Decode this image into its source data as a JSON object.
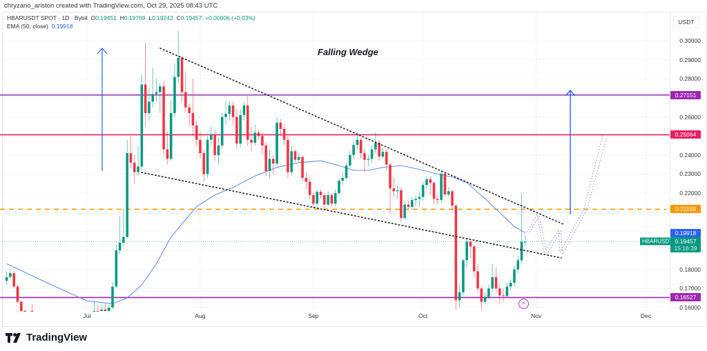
{
  "header": {
    "creator_line": "chryzano_ariston created with TradingView.com, Oct 29, 2025 08:43 UTC",
    "symbol_line": "HBARUSDT SPOT · 1D · Bybit",
    "ohlc": {
      "o_label": "O",
      "o": "0.19451",
      "h_label": "H",
      "h": "0.19769",
      "l_label": "L",
      "l": "0.19243",
      "c_label": "C",
      "c": "0.19457",
      "change": "+0.00006 (+0.03%)"
    },
    "ema_label": "EMA (50, close)",
    "ema_value": "0.19918"
  },
  "annotation_title": "Falling Wedge",
  "price_axis": {
    "currency": "USDT",
    "ticks": [
      "0.30000",
      "0.29000",
      "0.28000",
      "0.26000",
      "0.24000",
      "0.23000",
      "0.22000",
      "0.18000",
      "0.17000",
      "0.16000"
    ],
    "tick_values": [
      0.3,
      0.29,
      0.28,
      0.26,
      0.24,
      0.23,
      0.22,
      0.18,
      0.17,
      0.16
    ]
  },
  "time_axis": {
    "labels": [
      "Jul",
      "Aug",
      "Sep",
      "Oct",
      "Nov",
      "Dec"
    ],
    "dates": [
      "2025-07-01",
      "2025-08-01",
      "2025-09-01",
      "2025-10-01",
      "2025-11-01",
      "2025-12-01"
    ]
  },
  "levels": [
    {
      "value": "0.27151",
      "color": "#9c27b0",
      "style": "solid"
    },
    {
      "value": "0.25064",
      "color": "#e91e63",
      "style": "solid"
    },
    {
      "value": "0.21158",
      "color": "#ff9800",
      "style": "dashed"
    },
    {
      "value": "0.16527",
      "color": "#9c27b0",
      "style": "solid"
    }
  ],
  "ema_tag": {
    "value": "0.19918",
    "color": "#2962ff"
  },
  "last_price_tag": {
    "symbol": "HBARUSDT",
    "value": "0.19457",
    "countdown": "15:16:39",
    "color": "#089981"
  },
  "colors": {
    "up": "#089981",
    "down": "#f23645",
    "ema": "#6b8ff0"
  },
  "brand": "TradingView",
  "chart_data": {
    "type": "candlestick",
    "symbol": "HBARUSDT",
    "interval": "1D",
    "ylim": [
      0.158,
      0.307
    ],
    "xlim": [
      "2025-06-08",
      "2025-12-15"
    ],
    "grid": true,
    "candles_format": [
      "date",
      "open",
      "high",
      "low",
      "close"
    ],
    "candles": [
      [
        "2025-06-09",
        0.174,
        0.179,
        0.172,
        0.176
      ],
      [
        "2025-06-10",
        0.176,
        0.18,
        0.175,
        0.178
      ],
      [
        "2025-06-11",
        0.178,
        0.179,
        0.17,
        0.171
      ],
      [
        "2025-06-12",
        0.171,
        0.172,
        0.162,
        0.163
      ],
      [
        "2025-06-13",
        0.163,
        0.164,
        0.157,
        0.158
      ],
      [
        "2025-06-14",
        0.158,
        0.159,
        0.154,
        0.156
      ],
      [
        "2025-06-15",
        0.156,
        0.158,
        0.153,
        0.154
      ],
      [
        "2025-06-16",
        0.154,
        0.162,
        0.152,
        0.153
      ],
      [
        "2025-06-17",
        0.153,
        0.155,
        0.15,
        0.151
      ],
      [
        "2025-06-18",
        0.151,
        0.154,
        0.149,
        0.152
      ],
      [
        "2025-06-19",
        0.152,
        0.154,
        0.15,
        0.151
      ],
      [
        "2025-06-20",
        0.151,
        0.153,
        0.148,
        0.15
      ],
      [
        "2025-06-21",
        0.15,
        0.152,
        0.147,
        0.149
      ],
      [
        "2025-06-22",
        0.149,
        0.151,
        0.145,
        0.147
      ],
      [
        "2025-06-23",
        0.147,
        0.153,
        0.146,
        0.152
      ],
      [
        "2025-06-24",
        0.152,
        0.155,
        0.15,
        0.153
      ],
      [
        "2025-06-25",
        0.153,
        0.155,
        0.15,
        0.151
      ],
      [
        "2025-06-26",
        0.151,
        0.153,
        0.149,
        0.15
      ],
      [
        "2025-06-27",
        0.15,
        0.153,
        0.149,
        0.152
      ],
      [
        "2025-06-28",
        0.152,
        0.154,
        0.151,
        0.153
      ],
      [
        "2025-06-29",
        0.153,
        0.155,
        0.151,
        0.154
      ],
      [
        "2025-06-30",
        0.154,
        0.156,
        0.151,
        0.152
      ],
      [
        "2025-07-01",
        0.152,
        0.156,
        0.15,
        0.155
      ],
      [
        "2025-07-02",
        0.155,
        0.158,
        0.153,
        0.157
      ],
      [
        "2025-07-03",
        0.157,
        0.163,
        0.156,
        0.158
      ],
      [
        "2025-07-04",
        0.158,
        0.161,
        0.156,
        0.157
      ],
      [
        "2025-07-05",
        0.157,
        0.161,
        0.156,
        0.159
      ],
      [
        "2025-07-06",
        0.159,
        0.162,
        0.157,
        0.158
      ],
      [
        "2025-07-07",
        0.158,
        0.161,
        0.157,
        0.16
      ],
      [
        "2025-07-08",
        0.16,
        0.173,
        0.159,
        0.171
      ],
      [
        "2025-07-09",
        0.171,
        0.193,
        0.17,
        0.19
      ],
      [
        "2025-07-10",
        0.19,
        0.208,
        0.188,
        0.194
      ],
      [
        "2025-07-11",
        0.194,
        0.212,
        0.192,
        0.197
      ],
      [
        "2025-07-12",
        0.197,
        0.248,
        0.196,
        0.241
      ],
      [
        "2025-07-13",
        0.241,
        0.25,
        0.233,
        0.236
      ],
      [
        "2025-07-14",
        0.236,
        0.24,
        0.225,
        0.231
      ],
      [
        "2025-07-15",
        0.231,
        0.245,
        0.229,
        0.234
      ],
      [
        "2025-07-16",
        0.234,
        0.282,
        0.232,
        0.277
      ],
      [
        "2025-07-17",
        0.277,
        0.299,
        0.255,
        0.262
      ],
      [
        "2025-07-18",
        0.262,
        0.275,
        0.258,
        0.268
      ],
      [
        "2025-07-19",
        0.268,
        0.286,
        0.265,
        0.272
      ],
      [
        "2025-07-20",
        0.272,
        0.28,
        0.268,
        0.273
      ],
      [
        "2025-07-21",
        0.273,
        0.278,
        0.262,
        0.276
      ],
      [
        "2025-07-22",
        0.276,
        0.279,
        0.24,
        0.243
      ],
      [
        "2025-07-23",
        0.243,
        0.252,
        0.235,
        0.238
      ],
      [
        "2025-07-24",
        0.238,
        0.269,
        0.237,
        0.262
      ],
      [
        "2025-07-25",
        0.262,
        0.288,
        0.26,
        0.281
      ],
      [
        "2025-07-26",
        0.281,
        0.305,
        0.278,
        0.291
      ],
      [
        "2025-07-27",
        0.291,
        0.292,
        0.268,
        0.273
      ],
      [
        "2025-07-28",
        0.273,
        0.284,
        0.262,
        0.265
      ],
      [
        "2025-07-29",
        0.265,
        0.267,
        0.255,
        0.262
      ],
      [
        "2025-07-30",
        0.262,
        0.28,
        0.25,
        0.2555
      ],
      [
        "2025-07-31",
        0.2555,
        0.258,
        0.245,
        0.248
      ],
      [
        "2025-08-01",
        0.248,
        0.252,
        0.238,
        0.241
      ],
      [
        "2025-08-02",
        0.241,
        0.243,
        0.226,
        0.23
      ],
      [
        "2025-08-03",
        0.23,
        0.25,
        0.228,
        0.248
      ],
      [
        "2025-08-04",
        0.248,
        0.255,
        0.245,
        0.251
      ],
      [
        "2025-08-05",
        0.251,
        0.253,
        0.237,
        0.24
      ],
      [
        "2025-08-06",
        0.24,
        0.249,
        0.235,
        0.245
      ],
      [
        "2025-08-07",
        0.245,
        0.262,
        0.243,
        0.26
      ],
      [
        "2025-08-08",
        0.26,
        0.268,
        0.256,
        0.2616
      ],
      [
        "2025-08-09",
        0.2616,
        0.268,
        0.258,
        0.266
      ],
      [
        "2025-08-10",
        0.266,
        0.268,
        0.256,
        0.26
      ],
      [
        "2025-08-11",
        0.26,
        0.264,
        0.243,
        0.246
      ],
      [
        "2025-08-12",
        0.246,
        0.264,
        0.244,
        0.261
      ],
      [
        "2025-08-13",
        0.261,
        0.268,
        0.258,
        0.266
      ],
      [
        "2025-08-14",
        0.266,
        0.271,
        0.245,
        0.248
      ],
      [
        "2025-08-15",
        0.248,
        0.255,
        0.242,
        0.2465
      ],
      [
        "2025-08-16",
        0.2465,
        0.256,
        0.245,
        0.2518
      ],
      [
        "2025-08-17",
        0.2518,
        0.253,
        0.248,
        0.25
      ],
      [
        "2025-08-18",
        0.25,
        0.252,
        0.24,
        0.245
      ],
      [
        "2025-08-19",
        0.245,
        0.247,
        0.229,
        0.2316
      ],
      [
        "2025-08-20",
        0.2316,
        0.243,
        0.228,
        0.238
      ],
      [
        "2025-08-21",
        0.238,
        0.24,
        0.23,
        0.2355
      ],
      [
        "2025-08-22",
        0.2355,
        0.26,
        0.234,
        0.257
      ],
      [
        "2025-08-23",
        0.257,
        0.259,
        0.25,
        0.2537
      ],
      [
        "2025-08-24",
        0.2537,
        0.256,
        0.245,
        0.248
      ],
      [
        "2025-08-25",
        0.248,
        0.25,
        0.228,
        0.231
      ],
      [
        "2025-08-26",
        0.231,
        0.245,
        0.229,
        0.242
      ],
      [
        "2025-08-27",
        0.242,
        0.243,
        0.236,
        0.2375
      ],
      [
        "2025-08-28",
        0.2375,
        0.241,
        0.236,
        0.239
      ],
      [
        "2025-08-29",
        0.239,
        0.24,
        0.226,
        0.228
      ],
      [
        "2025-08-30",
        0.228,
        0.231,
        0.222,
        0.226
      ],
      [
        "2025-08-31",
        0.226,
        0.228,
        0.217,
        0.219
      ],
      [
        "2025-09-01",
        0.219,
        0.22,
        0.212,
        0.2145
      ],
      [
        "2025-09-02",
        0.2145,
        0.222,
        0.213,
        0.2207
      ],
      [
        "2025-09-03",
        0.2207,
        0.222,
        0.217,
        0.219
      ],
      [
        "2025-09-04",
        0.219,
        0.22,
        0.212,
        0.214
      ],
      [
        "2025-09-05",
        0.214,
        0.221,
        0.213,
        0.219
      ],
      [
        "2025-09-06",
        0.219,
        0.22,
        0.213,
        0.2145
      ],
      [
        "2025-09-07",
        0.2145,
        0.222,
        0.213,
        0.22
      ],
      [
        "2025-09-08",
        0.22,
        0.228,
        0.219,
        0.2265
      ],
      [
        "2025-09-09",
        0.2265,
        0.231,
        0.224,
        0.228
      ],
      [
        "2025-09-10",
        0.228,
        0.236,
        0.227,
        0.2345
      ],
      [
        "2025-09-11",
        0.2345,
        0.242,
        0.233,
        0.24
      ],
      [
        "2025-09-12",
        0.24,
        0.247,
        0.238,
        0.2453
      ],
      [
        "2025-09-13",
        0.2453,
        0.252,
        0.243,
        0.248
      ],
      [
        "2025-09-14",
        0.248,
        0.249,
        0.238,
        0.241
      ],
      [
        "2025-09-15",
        0.241,
        0.243,
        0.231,
        0.2375
      ],
      [
        "2025-09-16",
        0.2375,
        0.24,
        0.234,
        0.238
      ],
      [
        "2025-09-17",
        0.238,
        0.245,
        0.236,
        0.243
      ],
      [
        "2025-09-18",
        0.243,
        0.252,
        0.241,
        0.2464
      ],
      [
        "2025-09-19",
        0.2464,
        0.248,
        0.237,
        0.2392
      ],
      [
        "2025-09-20",
        0.2392,
        0.244,
        0.238,
        0.2417
      ],
      [
        "2025-09-21",
        0.2417,
        0.243,
        0.232,
        0.235
      ],
      [
        "2025-09-22",
        0.235,
        0.236,
        0.209,
        0.2225
      ],
      [
        "2025-09-23",
        0.2225,
        0.228,
        0.218,
        0.221
      ],
      [
        "2025-09-24",
        0.221,
        0.224,
        0.217,
        0.2215
      ],
      [
        "2025-09-25",
        0.2215,
        0.223,
        0.205,
        0.207
      ],
      [
        "2025-09-26",
        0.207,
        0.216,
        0.206,
        0.214
      ],
      [
        "2025-09-27",
        0.214,
        0.216,
        0.211,
        0.2128
      ],
      [
        "2025-09-28",
        0.2128,
        0.218,
        0.211,
        0.2164
      ],
      [
        "2025-09-29",
        0.2164,
        0.219,
        0.213,
        0.217
      ],
      [
        "2025-09-30",
        0.217,
        0.221,
        0.213,
        0.218
      ],
      [
        "2025-10-01",
        0.218,
        0.226,
        0.216,
        0.2243
      ],
      [
        "2025-10-02",
        0.2243,
        0.229,
        0.222,
        0.2273
      ],
      [
        "2025-10-03",
        0.2273,
        0.229,
        0.219,
        0.2254
      ],
      [
        "2025-10-04",
        0.2254,
        0.226,
        0.214,
        0.217
      ],
      [
        "2025-10-05",
        0.217,
        0.219,
        0.214,
        0.2165
      ],
      [
        "2025-10-06",
        0.2165,
        0.232,
        0.215,
        0.2302
      ],
      [
        "2025-10-07",
        0.2302,
        0.231,
        0.218,
        0.2193
      ],
      [
        "2025-10-08",
        0.2193,
        0.223,
        0.218,
        0.221
      ],
      [
        "2025-10-09",
        0.221,
        0.222,
        0.21,
        0.2135
      ],
      [
        "2025-10-10",
        0.2135,
        0.214,
        0.159,
        0.1638
      ],
      [
        "2025-10-11",
        0.1638,
        0.172,
        0.16,
        0.168
      ],
      [
        "2025-10-12",
        0.168,
        0.186,
        0.166,
        0.1848
      ],
      [
        "2025-10-13",
        0.1848,
        0.196,
        0.181,
        0.1946
      ],
      [
        "2025-10-14",
        0.1946,
        0.195,
        0.186,
        0.192
      ],
      [
        "2025-10-15",
        0.192,
        0.193,
        0.176,
        0.179
      ],
      [
        "2025-10-16",
        0.179,
        0.183,
        0.168,
        0.17
      ],
      [
        "2025-10-17",
        0.17,
        0.171,
        0.159,
        0.163
      ],
      [
        "2025-10-18",
        0.163,
        0.168,
        0.162,
        0.1656
      ],
      [
        "2025-10-19",
        0.1656,
        0.172,
        0.164,
        0.17
      ],
      [
        "2025-10-20",
        0.17,
        0.183,
        0.168,
        0.1759
      ],
      [
        "2025-10-21",
        0.1759,
        0.181,
        0.168,
        0.17
      ],
      [
        "2025-10-22",
        0.17,
        0.172,
        0.162,
        0.1664
      ],
      [
        "2025-10-23",
        0.1664,
        0.17,
        0.163,
        0.166
      ],
      [
        "2025-10-24",
        0.166,
        0.173,
        0.165,
        0.171
      ],
      [
        "2025-10-25",
        0.171,
        0.175,
        0.169,
        0.173
      ],
      [
        "2025-10-26",
        0.173,
        0.182,
        0.171,
        0.18
      ],
      [
        "2025-10-27",
        0.18,
        0.187,
        0.178,
        0.1848
      ],
      [
        "2025-10-28",
        0.1848,
        0.22,
        0.183,
        0.1945
      ],
      [
        "2025-10-29",
        0.19451,
        0.19769,
        0.19243,
        0.19457
      ]
    ],
    "ema": {
      "name": "EMA (50, close)",
      "points": [
        [
          "2025-06-09",
          0.183
        ],
        [
          "2025-06-20",
          0.173
        ],
        [
          "2025-07-01",
          0.1635
        ],
        [
          "2025-07-08",
          0.162
        ],
        [
          "2025-07-12",
          0.165
        ],
        [
          "2025-07-16",
          0.172
        ],
        [
          "2025-07-20",
          0.183
        ],
        [
          "2025-07-24",
          0.197
        ],
        [
          "2025-07-31",
          0.213
        ],
        [
          "2025-08-05",
          0.219
        ],
        [
          "2025-08-10",
          0.223
        ],
        [
          "2025-08-16",
          0.229
        ],
        [
          "2025-08-22",
          0.2335
        ],
        [
          "2025-08-28",
          0.236
        ],
        [
          "2025-09-03",
          0.237
        ],
        [
          "2025-09-08",
          0.2345
        ],
        [
          "2025-09-12",
          0.232
        ],
        [
          "2025-09-16",
          0.232
        ],
        [
          "2025-09-20",
          0.2335
        ],
        [
          "2025-09-25",
          0.2345
        ],
        [
          "2025-09-30",
          0.2325
        ],
        [
          "2025-10-05",
          0.23
        ],
        [
          "2025-10-09",
          0.2285
        ],
        [
          "2025-10-13",
          0.2255
        ],
        [
          "2025-10-18",
          0.217
        ],
        [
          "2025-10-23",
          0.208
        ],
        [
          "2025-10-26",
          0.2025
        ],
        [
          "2025-10-29",
          0.19918
        ]
      ]
    }
  }
}
